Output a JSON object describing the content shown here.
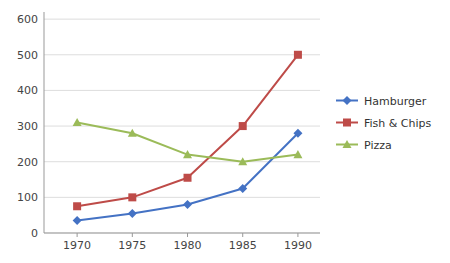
{
  "chart_data": {
    "type": "line",
    "x": [
      1970,
      1975,
      1980,
      1985,
      1990
    ],
    "series": [
      {
        "name": "Hamburger",
        "color": "#4472C4",
        "marker": "diamond",
        "values": [
          35,
          55,
          80,
          125,
          280
        ]
      },
      {
        "name": "Fish & Chips",
        "color": "#BE4B48",
        "marker": "square",
        "values": [
          75,
          100,
          155,
          300,
          500
        ]
      },
      {
        "name": "Pizza",
        "color": "#9BBB59",
        "marker": "triangle",
        "values": [
          310,
          280,
          220,
          200,
          220
        ]
      }
    ],
    "xlim": [
      1967,
      1992
    ],
    "xticks": [
      1970,
      1975,
      1980,
      1985,
      1990
    ],
    "ylim": [
      0,
      620
    ],
    "yticks": [
      0,
      100,
      200,
      300,
      400,
      500,
      600
    ],
    "grid": true,
    "legend": "right"
  }
}
